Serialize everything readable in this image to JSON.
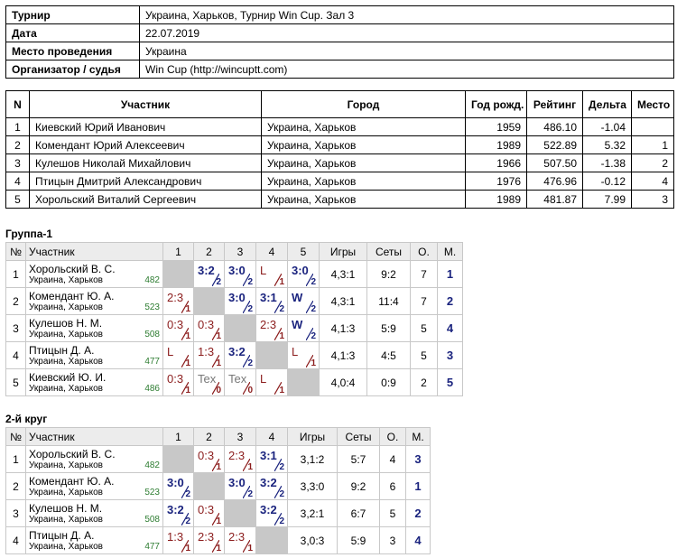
{
  "info": {
    "rows": [
      [
        "Турнир",
        "Украина, Харьков, Турнир Win Cup. Зал 3"
      ],
      [
        "Дата",
        "22.07.2019"
      ],
      [
        "Место проведения",
        "Украина"
      ],
      [
        "Организатор / судья",
        "Win Cup (http://wincuptt.com)"
      ]
    ]
  },
  "participants": {
    "headers": [
      "N",
      "Участник",
      "Город",
      "Год рожд.",
      "Рейтинг",
      "Дельта",
      "Место"
    ],
    "rows": [
      [
        "1",
        "Киевский Юрий Иванович",
        "Украина, Харьков",
        "1959",
        "486.10",
        "-1.04",
        null
      ],
      [
        "2",
        "Комендант Юрий Алексеевич",
        "Украина, Харьков",
        "1989",
        "522.89",
        "5.32",
        "1"
      ],
      [
        "3",
        "Кулешов Николай Михайлович",
        "Украина, Харьков",
        "1966",
        "507.50",
        "-1.38",
        "2"
      ],
      [
        "4",
        "Птицын Дмитрий Александрович",
        "Украина, Харьков",
        "1976",
        "476.96",
        "-0.12",
        "4"
      ],
      [
        "5",
        "Хорольский Виталий Сергеевич",
        "Украина, Харьков",
        "1989",
        "481.87",
        "7.99",
        "3"
      ]
    ]
  },
  "groups": [
    {
      "title": "Группа-1",
      "headers": [
        "№",
        "Участник",
        "1",
        "2",
        "3",
        "4",
        "5",
        "Игры",
        "Сеты",
        "О.",
        "М."
      ],
      "rows": [
        {
          "num": "1",
          "name": "Хорольский В. С.",
          "city": "Украина, Харьков",
          "rating": "482",
          "cells": [
            null,
            {
              "score": "3:2",
              "points": 2
            },
            {
              "score": "3:0",
              "points": 2
            },
            {
              "score": "L",
              "points": 1
            },
            {
              "score": "3:0",
              "points": 2
            }
          ],
          "games": "4,3:1",
          "sets": "9:2",
          "points": "7",
          "place": "1"
        },
        {
          "num": "2",
          "name": "Комендант Ю. А.",
          "city": "Украина, Харьков",
          "rating": "523",
          "cells": [
            {
              "score": "2:3",
              "points": 1
            },
            null,
            {
              "score": "3:0",
              "points": 2
            },
            {
              "score": "3:1",
              "points": 2
            },
            {
              "score": "W",
              "points": 2
            }
          ],
          "games": "4,3:1",
          "sets": "11:4",
          "points": "7",
          "place": "2"
        },
        {
          "num": "3",
          "name": "Кулешов Н. М.",
          "city": "Украина, Харьков",
          "rating": "508",
          "cells": [
            {
              "score": "0:3",
              "points": 1
            },
            {
              "score": "0:3",
              "points": 1
            },
            null,
            {
              "score": "2:3",
              "points": 1
            },
            {
              "score": "W",
              "points": 2
            }
          ],
          "games": "4,1:3",
          "sets": "5:9",
          "points": "5",
          "place": "4"
        },
        {
          "num": "4",
          "name": "Птицын Д. А.",
          "city": "Украина, Харьков",
          "rating": "477",
          "cells": [
            {
              "score": "L",
              "points": 1
            },
            {
              "score": "1:3",
              "points": 1
            },
            {
              "score": "3:2",
              "points": 2
            },
            null,
            {
              "score": "L",
              "points": 1
            }
          ],
          "games": "4,1:3",
          "sets": "4:5",
          "points": "5",
          "place": "3"
        },
        {
          "num": "5",
          "name": "Киевский Ю. И.",
          "city": "Украина, Харьков",
          "rating": "486",
          "cells": [
            {
              "score": "0:3",
              "points": 1
            },
            {
              "score": "Tex",
              "points": 0
            },
            {
              "score": "Tex",
              "points": 0
            },
            {
              "score": "L",
              "points": 1
            },
            null
          ],
          "games": "4,0:4",
          "sets": "0:9",
          "points": "2",
          "place": "5"
        }
      ]
    },
    {
      "title": "2-й круг",
      "headers": [
        "№",
        "Участник",
        "1",
        "2",
        "3",
        "4",
        "Игры",
        "Сеты",
        "О.",
        "М."
      ],
      "rows": [
        {
          "num": "1",
          "name": "Хорольский В. С.",
          "city": "Украина, Харьков",
          "rating": "482",
          "cells": [
            null,
            {
              "score": "0:3",
              "points": 1
            },
            {
              "score": "2:3",
              "points": 1
            },
            {
              "score": "3:1",
              "points": 2
            }
          ],
          "games": "3,1:2",
          "sets": "5:7",
          "points": "4",
          "place": "3"
        },
        {
          "num": "2",
          "name": "Комендант Ю. А.",
          "city": "Украина, Харьков",
          "rating": "523",
          "cells": [
            {
              "score": "3:0",
              "points": 2
            },
            null,
            {
              "score": "3:0",
              "points": 2
            },
            {
              "score": "3:2",
              "points": 2
            }
          ],
          "games": "3,3:0",
          "sets": "9:2",
          "points": "6",
          "place": "1"
        },
        {
          "num": "3",
          "name": "Кулешов Н. М.",
          "city": "Украина, Харьков",
          "rating": "508",
          "cells": [
            {
              "score": "3:2",
              "points": 2
            },
            {
              "score": "0:3",
              "points": 1
            },
            null,
            {
              "score": "3:2",
              "points": 2
            }
          ],
          "games": "3,2:1",
          "sets": "6:7",
          "points": "5",
          "place": "2"
        },
        {
          "num": "4",
          "name": "Птицын Д. А.",
          "city": "Украина, Харьков",
          "rating": "477",
          "cells": [
            {
              "score": "1:3",
              "points": 1
            },
            {
              "score": "2:3",
              "points": 1
            },
            {
              "score": "2:3",
              "points": 1
            },
            null
          ],
          "games": "3,0:3",
          "sets": "5:9",
          "points": "3",
          "place": "4"
        }
      ]
    }
  ]
}
